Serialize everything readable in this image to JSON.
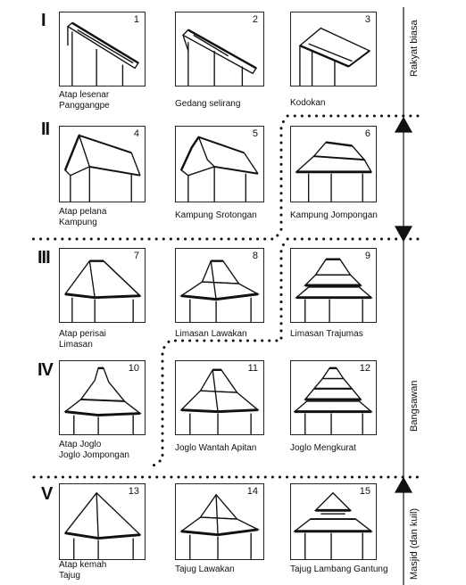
{
  "rows": [
    {
      "numeral": "I"
    },
    {
      "numeral": "II"
    },
    {
      "numeral": "III"
    },
    {
      "numeral": "IV"
    },
    {
      "numeral": "V"
    }
  ],
  "panels": [
    {
      "number": "1",
      "caption": [
        "Atap lesenar",
        "Panggangpe"
      ]
    },
    {
      "number": "2",
      "caption": [
        "Gedang selirang"
      ]
    },
    {
      "number": "3",
      "caption": [
        "Kodokan"
      ]
    },
    {
      "number": "4",
      "caption": [
        "Atap pelana",
        "Kampung"
      ]
    },
    {
      "number": "5",
      "caption": [
        "Kampung Srotongan"
      ]
    },
    {
      "number": "6",
      "caption": [
        "Kampung Jompongan"
      ]
    },
    {
      "number": "7",
      "caption": [
        "Atap perisai",
        "Limasan"
      ]
    },
    {
      "number": "8",
      "caption": [
        "Limasan Lawakan"
      ]
    },
    {
      "number": "9",
      "caption": [
        "Limasan Trajumas"
      ]
    },
    {
      "number": "10",
      "caption": [
        "Atap Joglo",
        "Joglo Jompongan"
      ]
    },
    {
      "number": "11",
      "caption": [
        "Joglo Wantah Apitan"
      ]
    },
    {
      "number": "12",
      "caption": [
        "Joglo Mengkurat"
      ]
    },
    {
      "number": "13",
      "caption": [
        "Atap kemah",
        "Tajug"
      ]
    },
    {
      "number": "14",
      "caption": [
        "Tajug Lawakan"
      ]
    },
    {
      "number": "15",
      "caption": [
        "Tajug Lambang Gantung"
      ]
    }
  ],
  "side_labels": {
    "rakyat": "Rakyat biasa",
    "bangsawan": "Bangsawan",
    "masjid": "Masjid (dan kuil)"
  }
}
